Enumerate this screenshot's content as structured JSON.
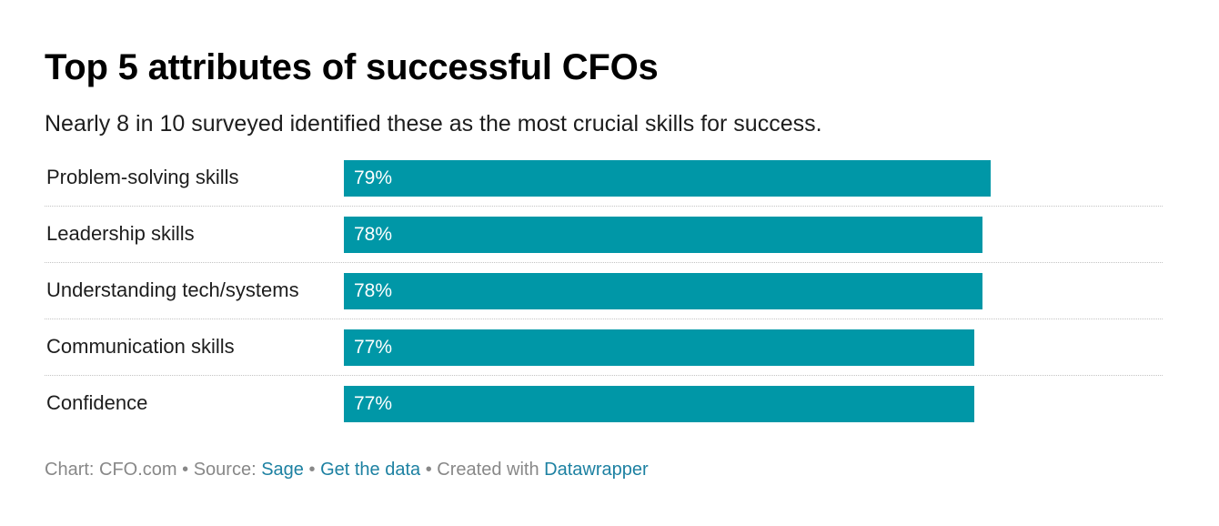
{
  "colors": {
    "bar": "#0097a7",
    "bar_text": "#ffffff",
    "link": "#1d81a2",
    "footer_text": "#888888"
  },
  "chart_data": {
    "type": "bar",
    "orientation": "horizontal",
    "title": "Top 5 attributes of successful CFOs",
    "subtitle": "Nearly 8 in 10 surveyed identified these as the most crucial skills for success.",
    "categories": [
      "Problem-solving skills",
      "Leadership skills",
      "Understanding tech/systems",
      "Communication skills",
      "Confidence"
    ],
    "values": [
      79,
      78,
      78,
      77,
      77
    ],
    "value_labels": [
      "79%",
      "78%",
      "78%",
      "77%",
      "77%"
    ],
    "unit": "%",
    "xlim": [
      0,
      100
    ],
    "grid": false
  },
  "footer": {
    "chart_prefix": "Chart: CFO.com",
    "separator": "•",
    "source_prefix": "Source:",
    "source_link": "Sage",
    "data_link": "Get the data",
    "created_prefix": "Created with",
    "created_link": "Datawrapper"
  }
}
